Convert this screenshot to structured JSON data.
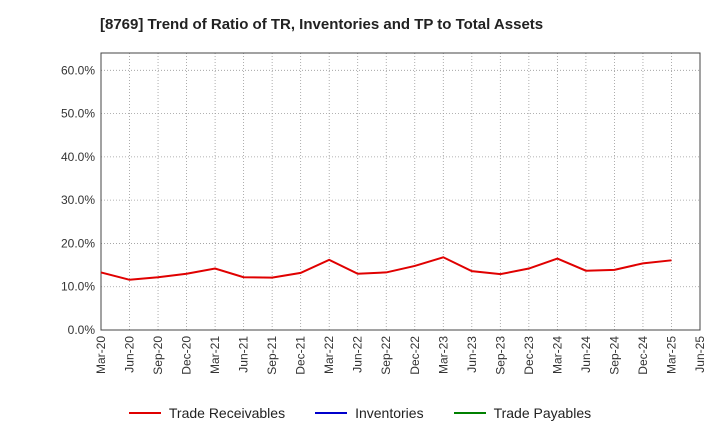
{
  "chart_data": {
    "type": "line",
    "title": "[8769]  Trend of Ratio of TR, Inventories and TP to Total Assets",
    "xlabel": "",
    "ylabel": "",
    "x_tick_labels": [
      "Mar-20",
      "Jun-20",
      "Sep-20",
      "Dec-20",
      "Mar-21",
      "Jun-21",
      "Sep-21",
      "Dec-21",
      "Mar-22",
      "Jun-22",
      "Sep-22",
      "Dec-22",
      "Mar-23",
      "Jun-23",
      "Sep-23",
      "Dec-23",
      "Mar-24",
      "Jun-24",
      "Sep-24",
      "Dec-24",
      "Mar-25",
      "Jun-25"
    ],
    "y_ticks": [
      0,
      10,
      20,
      30,
      40,
      50,
      60
    ],
    "y_tick_labels": [
      "0.0%",
      "10.0%",
      "20.0%",
      "30.0%",
      "40.0%",
      "50.0%",
      "60.0%"
    ],
    "ylim": [
      0,
      64
    ],
    "grid": true,
    "legend_position": "bottom",
    "series": [
      {
        "name": "Trade Receivables",
        "color": "#e00000",
        "values": [
          13.3,
          11.6,
          12.2,
          13.0,
          14.2,
          12.2,
          12.1,
          13.2,
          16.2,
          13.0,
          13.3,
          14.8,
          16.8,
          13.6,
          12.9,
          14.2,
          16.5,
          13.7,
          13.9,
          15.4,
          16.1,
          null
        ]
      },
      {
        "name": "Inventories",
        "color": "#0000cc",
        "values": []
      },
      {
        "name": "Trade Payables",
        "color": "#008000",
        "values": []
      }
    ]
  }
}
